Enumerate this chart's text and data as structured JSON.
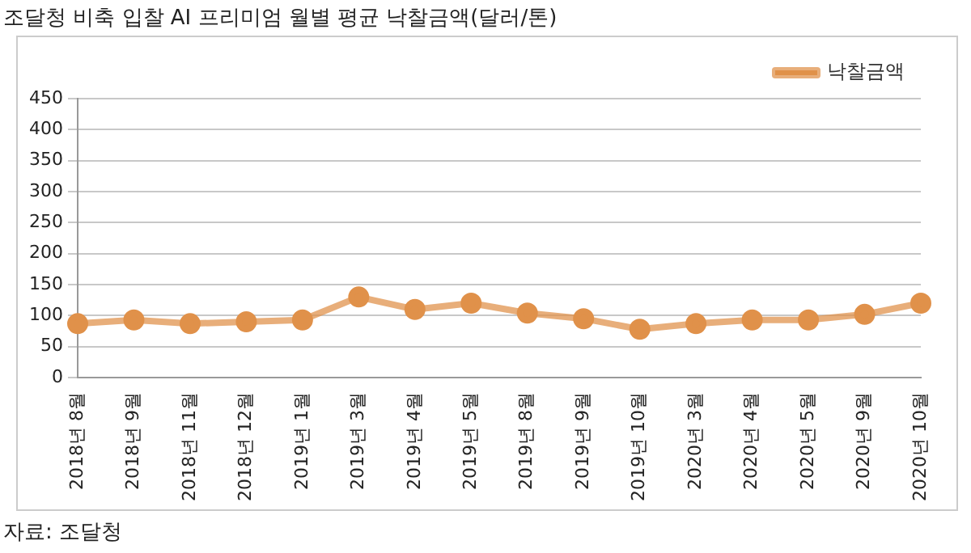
{
  "chart_data": {
    "type": "line",
    "title": "조달청 비축 입찰 AI 프리미엄 월별 평균 낙찰금액(달러/톤)",
    "categories": [
      "2018년 8월",
      "2018년 9월",
      "2018년 11월",
      "2018년 12월",
      "2019년 1월",
      "2019년 3월",
      "2019년 4월",
      "2019년 5월",
      "2019년 8월",
      "2019년 9월",
      "2019년 10월",
      "2020년 3월",
      "2020년 4월",
      "2020년 5월",
      "2020년 9월",
      "2020년 10월"
    ],
    "series": [
      {
        "name": "낙찰금액",
        "color": "#e0914a",
        "values": [
          87,
          93,
          87,
          90,
          93,
          130,
          110,
          120,
          104,
          95,
          78,
          87,
          93,
          93,
          102,
          120
        ]
      }
    ],
    "ylim": [
      0,
      450
    ],
    "yticks": [
      0,
      50,
      100,
      150,
      200,
      250,
      300,
      350,
      400,
      450
    ],
    "grid": "y",
    "legend": "top right",
    "marker": "circle",
    "line_style": "solid",
    "annotations": [
      "자료: 조달청"
    ]
  }
}
